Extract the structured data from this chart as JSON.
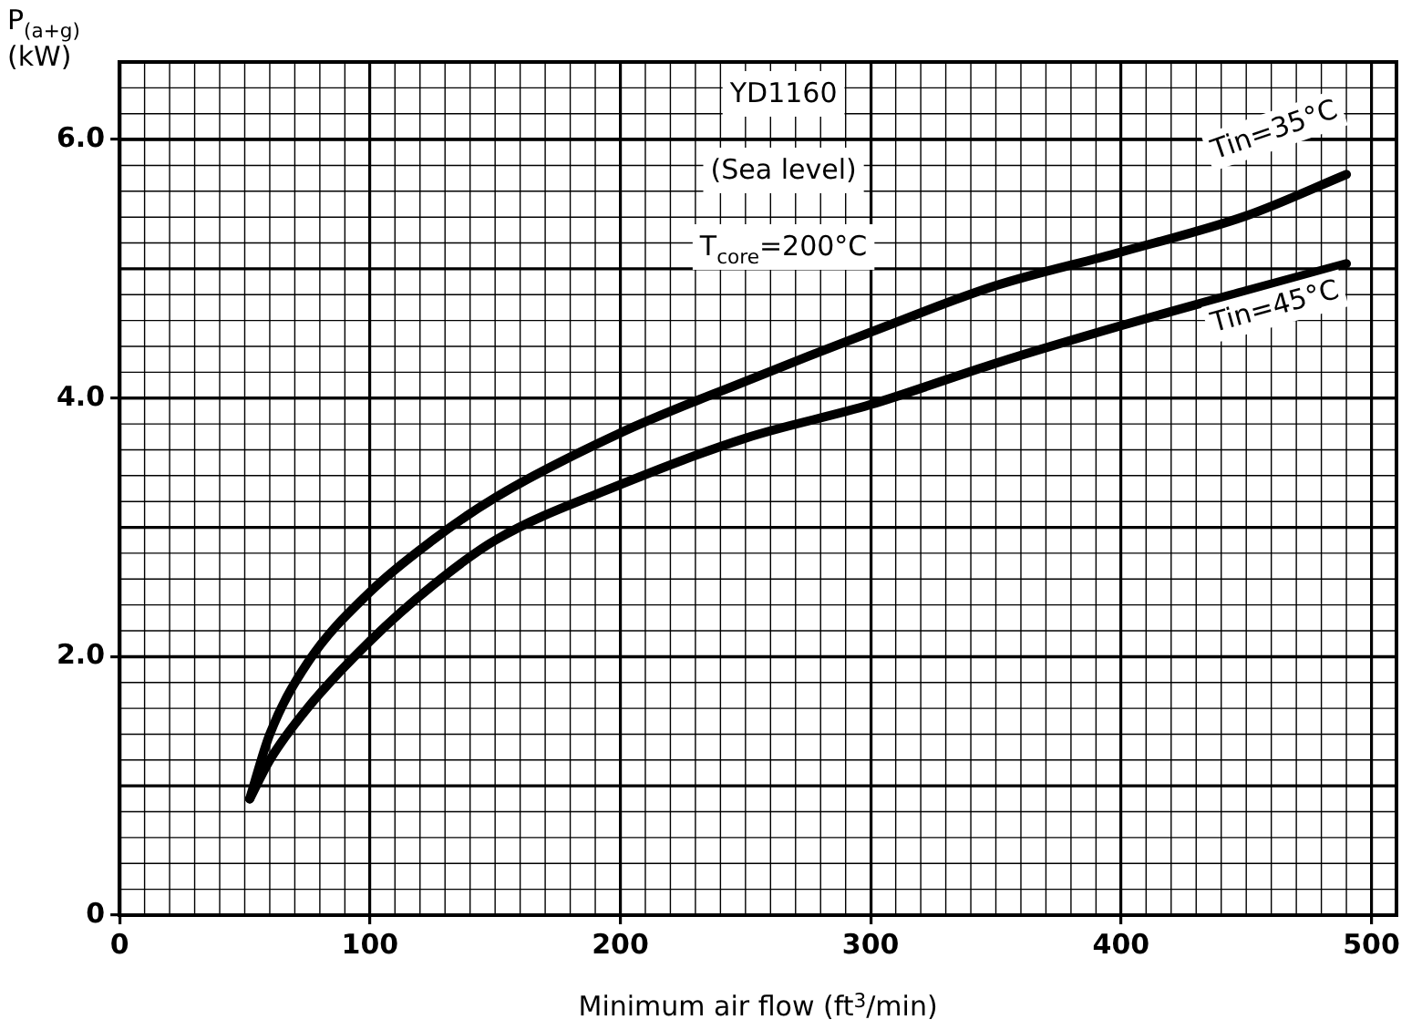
{
  "chart_data": {
    "type": "line",
    "xlabel": "Minimum air flow (ft$^{3}$/min)",
    "ylabel": "P$_{(a+g)}$ (kW)",
    "annotations": [
      "YD1160",
      "(Sea level)",
      "T$_{core}$=200°C"
    ],
    "x": [
      52,
      60,
      75,
      100,
      125,
      150,
      200,
      250,
      300,
      350,
      400,
      450,
      490
    ],
    "series": [
      {
        "name": "Tin=35°C",
        "color": "#000000",
        "values": [
          0.9,
          1.4,
          1.95,
          2.5,
          2.9,
          3.23,
          3.73,
          4.13,
          4.51,
          4.87,
          5.13,
          5.41,
          5.73
        ]
      },
      {
        "name": "Tin=45°C",
        "color": "#000000",
        "values": [
          0.9,
          1.2,
          1.6,
          2.12,
          2.55,
          2.9,
          3.33,
          3.69,
          3.95,
          4.27,
          4.56,
          4.83,
          5.04
        ]
      }
    ],
    "xlim": [
      0,
      510
    ],
    "ylim": [
      0,
      6.6
    ],
    "xticks": [
      0,
      100,
      200,
      300,
      400,
      500
    ],
    "yticks": [
      0,
      {
        "value": 2,
        "label": "2.0"
      },
      {
        "value": 4,
        "label": "4.0"
      },
      {
        "value": 6,
        "label": "6.0"
      }
    ],
    "grid": true,
    "legend": false,
    "marker": "none",
    "line_style": "solid"
  }
}
